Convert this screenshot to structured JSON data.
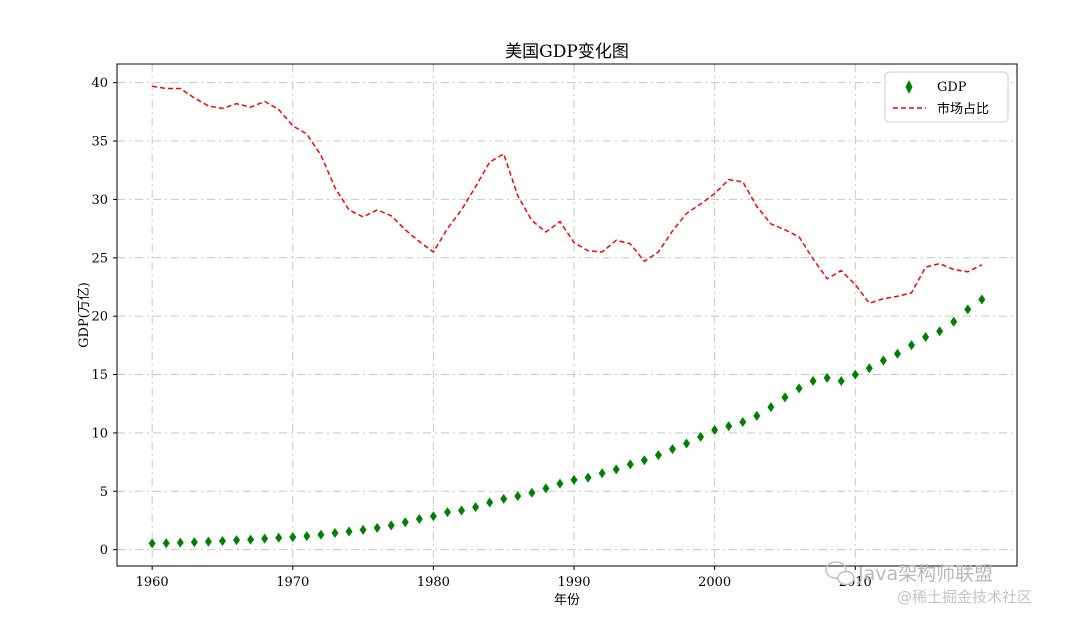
{
  "chart_data": {
    "type": "line",
    "title": "美国GDP变化图",
    "xlabel": "年份",
    "ylabel": "GDP(万亿)",
    "xlim": [
      1957.5,
      2021.5
    ],
    "ylim": [
      -1.4,
      41.6
    ],
    "x_ticks": [
      1960,
      1970,
      1980,
      1990,
      2000,
      2010
    ],
    "y_ticks": [
      0,
      5,
      10,
      15,
      20,
      25,
      30,
      35,
      40
    ],
    "grid": true,
    "legend_position": "top-right",
    "x": [
      1960,
      1961,
      1962,
      1963,
      1964,
      1965,
      1966,
      1967,
      1968,
      1969,
      1970,
      1971,
      1972,
      1973,
      1974,
      1975,
      1976,
      1977,
      1978,
      1979,
      1980,
      1981,
      1982,
      1983,
      1984,
      1985,
      1986,
      1987,
      1988,
      1989,
      1990,
      1991,
      1992,
      1993,
      1994,
      1995,
      1996,
      1997,
      1998,
      1999,
      2000,
      2001,
      2002,
      2003,
      2004,
      2005,
      2006,
      2007,
      2008,
      2009,
      2010,
      2011,
      2012,
      2013,
      2014,
      2015,
      2016,
      2017,
      2018,
      2019
    ],
    "series": [
      {
        "name": "GDP",
        "style": "scatter",
        "marker": "thin-diamond",
        "color": "#007f00",
        "values": [
          0.54,
          0.56,
          0.6,
          0.64,
          0.69,
          0.74,
          0.82,
          0.86,
          0.94,
          1.02,
          1.07,
          1.16,
          1.28,
          1.43,
          1.55,
          1.69,
          1.87,
          2.08,
          2.35,
          2.63,
          2.86,
          3.21,
          3.35,
          3.64,
          4.04,
          4.35,
          4.59,
          4.87,
          5.25,
          5.66,
          5.98,
          6.17,
          6.54,
          6.88,
          7.31,
          7.66,
          8.1,
          8.61,
          9.09,
          9.66,
          10.25,
          10.58,
          10.94,
          11.46,
          12.21,
          13.04,
          13.82,
          14.45,
          14.71,
          14.45,
          14.99,
          15.54,
          16.2,
          16.78,
          17.52,
          18.22,
          18.71,
          19.52,
          20.58,
          21.43
        ]
      },
      {
        "name": "市场占比",
        "style": "dashed-line",
        "color": "#ff0000",
        "values": [
          39.7,
          39.5,
          39.5,
          38.7,
          38.0,
          37.8,
          38.2,
          37.9,
          38.4,
          37.7,
          36.3,
          35.6,
          33.8,
          31.0,
          29.1,
          28.5,
          29.1,
          28.6,
          27.4,
          26.4,
          25.5,
          27.5,
          29.1,
          31.1,
          33.2,
          33.9,
          30.3,
          28.2,
          27.2,
          28.1,
          26.3,
          25.6,
          25.5,
          26.5,
          26.2,
          24.7,
          25.5,
          27.3,
          28.8,
          29.6,
          30.5,
          31.7,
          31.5,
          29.4,
          27.9,
          27.4,
          26.8,
          24.9,
          23.2,
          23.9,
          22.7,
          21.1,
          21.5,
          21.7,
          22.0,
          24.2,
          24.5,
          24.0,
          23.8,
          24.4
        ]
      }
    ]
  },
  "watermark": {
    "line1": "Java架构师联盟",
    "line2": "@稀土掘金技术社区",
    "icon": "wechat-icon"
  }
}
